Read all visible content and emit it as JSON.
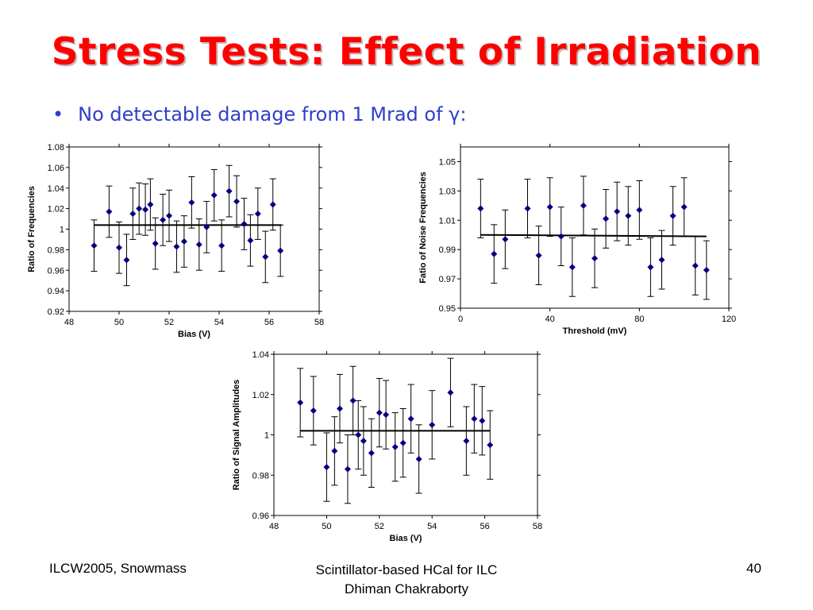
{
  "slide": {
    "title": "Stress Tests: Effect of Irradiation",
    "bullet_marker": "•",
    "bullet_text": "No detectable damage from 1 Mrad of",
    "bullet_symbol": "γ:",
    "footer_left": "ILCW2005, Snowmass",
    "footer_center_line1": "Scintillator-based HCal for ILC",
    "footer_center_line2": "Dhiman Chakraborty",
    "footer_right": "40"
  },
  "colors": {
    "title": "#ff0000",
    "bullet": "#2f3fc8",
    "marker": "#000080",
    "line": "#000000"
  },
  "chart_data": [
    {
      "type": "scatter",
      "xlabel": "Bias (V)",
      "ylabel": "Ratio of Frequencies",
      "xlim": [
        48,
        58
      ],
      "ylim": [
        0.92,
        1.08
      ],
      "xticks": [
        48,
        50,
        52,
        54,
        56,
        58
      ],
      "xtick_labels": [
        "48",
        "50",
        "52",
        "54",
        "56",
        "58"
      ],
      "yticks": [
        0.92,
        0.94,
        0.96,
        0.98,
        1.0,
        1.02,
        1.04,
        1.06,
        1.08
      ],
      "ytick_labels": [
        "0.92",
        "0.94",
        "0.96",
        "0.98",
        "1",
        "1.02",
        "1.04",
        "1.06",
        "1.08"
      ],
      "grid": false,
      "x": [
        49.0,
        49.6,
        50.0,
        50.3,
        50.55,
        50.8,
        51.05,
        51.25,
        51.45,
        51.75,
        52.0,
        52.3,
        52.6,
        52.9,
        53.2,
        53.5,
        53.8,
        54.1,
        54.4,
        54.7,
        55.0,
        55.25,
        55.55,
        55.85,
        56.15,
        56.45
      ],
      "y": [
        0.984,
        1.017,
        0.982,
        0.97,
        1.015,
        1.02,
        1.019,
        1.024,
        0.986,
        1.009,
        1.013,
        0.983,
        0.988,
        1.026,
        0.985,
        1.002,
        1.033,
        0.984,
        1.037,
        1.027,
        1.005,
        0.989,
        1.015,
        0.973,
        1.024,
        0.979
      ],
      "error": [
        0.025,
        0.025,
        0.025,
        0.025,
        0.025,
        0.025,
        0.025,
        0.025,
        0.025,
        0.025,
        0.025,
        0.025,
        0.025,
        0.025,
        0.025,
        0.025,
        0.025,
        0.025,
        0.025,
        0.025,
        0.025,
        0.025,
        0.025,
        0.025,
        0.025,
        0.025
      ],
      "fit_line": {
        "x": [
          49.0,
          56.5
        ],
        "y": [
          1.004,
          1.004
        ]
      }
    },
    {
      "type": "scatter",
      "xlabel": "Threshold (mV)",
      "ylabel": "Fatio of Noise Frequencies",
      "xlim": [
        0,
        120
      ],
      "ylim": [
        0.95,
        1.06
      ],
      "xticks": [
        0,
        40,
        80,
        120
      ],
      "xtick_labels": [
        "0",
        "40",
        "80",
        "120"
      ],
      "yticks": [
        0.95,
        0.97,
        0.99,
        1.01,
        1.03,
        1.05
      ],
      "ytick_labels": [
        "0.95",
        "0.97",
        "0.99",
        "1.01",
        "1.03",
        "1.05"
      ],
      "grid": false,
      "x": [
        9,
        15,
        20,
        30,
        35,
        40,
        45,
        50,
        55,
        60,
        65,
        70,
        75,
        80,
        85,
        90,
        95,
        100,
        105,
        110
      ],
      "y": [
        1.018,
        0.987,
        0.997,
        1.018,
        0.986,
        1.019,
        0.999,
        0.978,
        1.02,
        0.984,
        1.011,
        1.016,
        1.013,
        1.017,
        0.978,
        0.983,
        1.013,
        1.019,
        0.979,
        0.976
      ],
      "error": [
        0.02,
        0.02,
        0.02,
        0.02,
        0.02,
        0.02,
        0.02,
        0.02,
        0.02,
        0.02,
        0.02,
        0.02,
        0.02,
        0.02,
        0.02,
        0.02,
        0.02,
        0.02,
        0.02,
        0.02
      ],
      "fit_line": {
        "x": [
          9,
          110
        ],
        "y": [
          1.0,
          0.999
        ]
      }
    },
    {
      "type": "scatter",
      "xlabel": "Bias (V)",
      "ylabel": "Ratio of Signal Amplitudes",
      "xlim": [
        48,
        58
      ],
      "ylim": [
        0.96,
        1.04
      ],
      "xticks": [
        48,
        50,
        52,
        54,
        56,
        58
      ],
      "xtick_labels": [
        "48",
        "50",
        "52",
        "54",
        "56",
        "58"
      ],
      "yticks": [
        0.96,
        0.98,
        1.0,
        1.02,
        1.04
      ],
      "ytick_labels": [
        "0.96",
        "0.98",
        "1",
        "1.02",
        "1.04"
      ],
      "grid": false,
      "x": [
        49.0,
        49.5,
        50.0,
        50.3,
        50.5,
        50.8,
        51.0,
        51.2,
        51.4,
        51.7,
        52.0,
        52.25,
        52.6,
        52.9,
        53.2,
        53.5,
        54.0,
        54.7,
        55.3,
        55.6,
        55.9,
        56.2
      ],
      "y": [
        1.016,
        1.012,
        0.984,
        0.992,
        1.013,
        0.983,
        1.017,
        1.0,
        0.997,
        0.991,
        1.011,
        1.01,
        0.994,
        0.996,
        1.008,
        0.988,
        1.005,
        1.021,
        0.997,
        1.008,
        1.007,
        0.995
      ],
      "error": [
        0.017,
        0.017,
        0.017,
        0.017,
        0.017,
        0.017,
        0.017,
        0.017,
        0.017,
        0.017,
        0.017,
        0.017,
        0.017,
        0.017,
        0.017,
        0.017,
        0.017,
        0.017,
        0.017,
        0.017,
        0.017,
        0.017
      ],
      "fit_line": {
        "x": [
          49.0,
          56.2
        ],
        "y": [
          1.002,
          1.002
        ]
      }
    }
  ]
}
